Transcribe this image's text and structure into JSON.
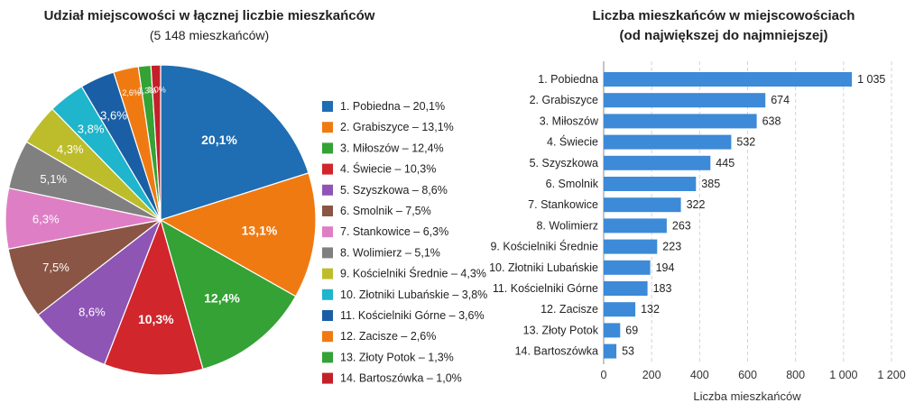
{
  "chart_data": [
    {
      "type": "pie",
      "title": "Udział miejscowości w łącznej liczbie mieszkańców",
      "subtitle": "(5 148 mieszkańców)",
      "legend_position": "right",
      "slices": [
        {
          "legend": "1.  Pobiedna – 20,1%",
          "label": "20,1%",
          "value": 20.1,
          "color": "#1f6db3"
        },
        {
          "legend": "2.  Grabiszyce – 13,1%",
          "label": "13,1%",
          "value": 13.1,
          "color": "#f07a12"
        },
        {
          "legend": "3.  Miłoszów – 12,4%",
          "label": "12,4%",
          "value": 12.4,
          "color": "#34a234"
        },
        {
          "legend": "4.  Świecie – 10,3%",
          "label": "10,3%",
          "value": 10.3,
          "color": "#d1262c"
        },
        {
          "legend": "5.  Szyszkowa – 8,6%",
          "label": "8,6%",
          "value": 8.6,
          "color": "#8e55b5"
        },
        {
          "legend": "6.  Smolnik – 7,5%",
          "label": "7,5%",
          "value": 7.5,
          "color": "#8a5544"
        },
        {
          "legend": "7.  Stankowice – 6,3%",
          "label": "6,3%",
          "value": 6.3,
          "color": "#de7fc5"
        },
        {
          "legend": "8.  Wolimierz – 5,1%",
          "label": "5,1%",
          "value": 5.1,
          "color": "#808080"
        },
        {
          "legend": "9.  Kościelniki Średnie – 4,3%",
          "label": "4,3%",
          "value": 4.3,
          "color": "#bdbd2c"
        },
        {
          "legend": "10. Złotniki Lubańskie – 3,8%",
          "label": "3,8%",
          "value": 3.8,
          "color": "#1fb5cc"
        },
        {
          "legend": "11. Kościelniki Górne – 3,6%",
          "label": "3,6%",
          "value": 3.6,
          "color": "#1a5fa5"
        },
        {
          "legend": "12. Zacisze – 2,6%",
          "label": "2,6%",
          "value": 2.6,
          "color": "#f07a12"
        },
        {
          "legend": "13. Złoty Potok – 1,3%",
          "label": "1,3%",
          "value": 1.3,
          "color": "#34a234"
        },
        {
          "legend": "14. Bartoszówka – 1,0%",
          "label": "1,0%",
          "value": 1.0,
          "color": "#c4202a"
        }
      ]
    },
    {
      "type": "bar",
      "orientation": "horizontal",
      "title_line1": "Liczba mieszkańców w miejscowościach",
      "title_line2": "(od największej do najmniejszej)",
      "xlabel": "Liczba mieszkańców",
      "xlim": [
        0,
        1200
      ],
      "xticks": [
        {
          "value": 0,
          "label": "0"
        },
        {
          "value": 200,
          "label": "200"
        },
        {
          "value": 400,
          "label": "400"
        },
        {
          "value": 600,
          "label": "600"
        },
        {
          "value": 800,
          "label": "800"
        },
        {
          "value": 1000,
          "label": "1 000"
        },
        {
          "value": 1200,
          "label": "1 200"
        }
      ],
      "grid": true,
      "bar_color": "#3c8ad8",
      "categories": [
        "1. Pobiedna",
        "2. Grabiszyce",
        "3. Miłoszów",
        "4. Świecie",
        "5. Szyszkowa",
        "6. Smolnik",
        "7. Stankowice",
        "8. Wolimierz",
        "9. Kościelniki Średnie",
        "10. Złotniki Lubańskie",
        "11. Kościelniki Górne",
        "12. Zacisze",
        "13. Złoty Potok",
        "14. Bartoszówka"
      ],
      "values": [
        1035,
        674,
        638,
        532,
        445,
        385,
        322,
        263,
        223,
        194,
        183,
        132,
        69,
        53
      ],
      "value_labels": [
        "1 035",
        "674",
        "638",
        "532",
        "445",
        "385",
        "322",
        "263",
        "223",
        "194",
        "183",
        "132",
        "69",
        "53"
      ]
    }
  ]
}
